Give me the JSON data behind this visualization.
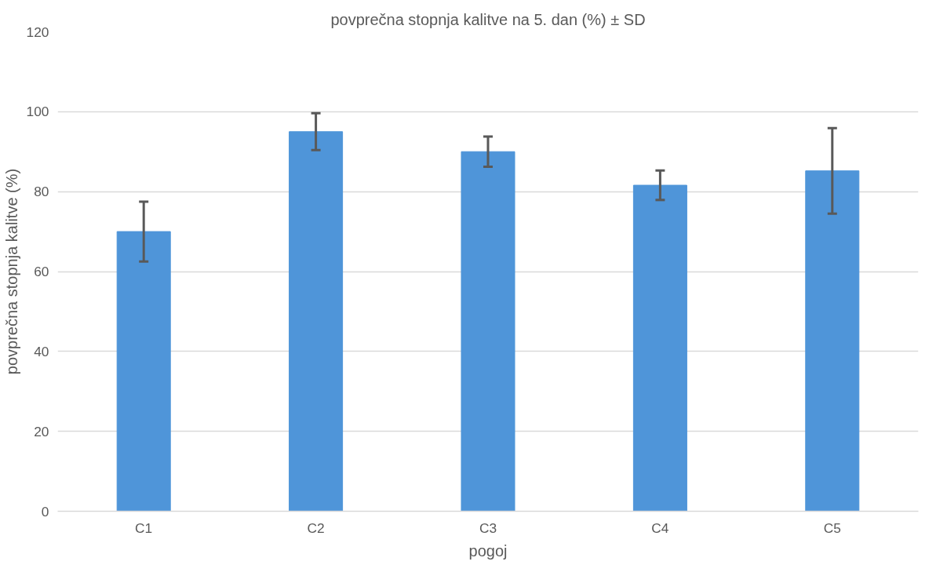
{
  "chart_data": {
    "type": "bar",
    "title": "povprečna stopnja kalitve na 5. dan (%) ± SD",
    "xlabel": "pogoj",
    "ylabel": "povprečna stopnja kalitve (%)",
    "categories": [
      "C1",
      "C2",
      "C3",
      "C4",
      "C5"
    ],
    "values": [
      70,
      95,
      90,
      81.6,
      85.2
    ],
    "errors": [
      7.5,
      4.6,
      3.8,
      3.7,
      10.7
    ],
    "colors": [
      "#4f95d9",
      "#4f95d9",
      "#4f95d9",
      "#4f95d9",
      "#4f95d9"
    ],
    "ylim": [
      0,
      120
    ],
    "yticks": [
      0,
      20,
      40,
      60,
      80,
      100,
      120
    ],
    "grid": "y"
  }
}
